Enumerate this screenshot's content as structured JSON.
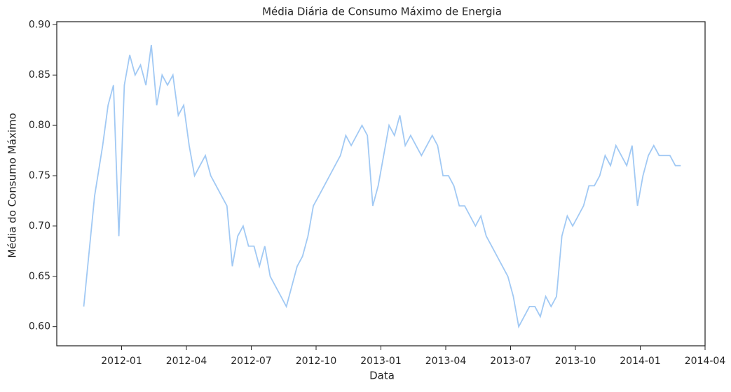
{
  "chart_data": {
    "type": "line",
    "title": "Média Diária de Consumo Máximo de Energia",
    "xlabel": "Data",
    "ylabel": "Média do Consumo Máximo",
    "x": [
      "2011-11",
      "2011-11",
      "2011-12",
      "2011-12",
      "2011-12",
      "2011-12",
      "2012-01",
      "2012-01",
      "2012-01",
      "2012-01",
      "2012-02",
      "2012-02",
      "2012-02",
      "2012-02",
      "2012-03",
      "2012-03",
      "2012-03",
      "2012-03",
      "2012-04",
      "2012-04",
      "2012-04",
      "2012-04",
      "2012-05",
      "2012-05",
      "2012-05",
      "2012-05",
      "2012-06",
      "2012-06",
      "2012-06",
      "2012-06",
      "2012-07",
      "2012-07",
      "2012-07",
      "2012-07",
      "2012-08",
      "2012-08",
      "2012-08",
      "2012-08",
      "2012-09",
      "2012-09",
      "2012-09",
      "2012-09",
      "2012-10",
      "2012-10",
      "2012-10",
      "2012-10",
      "2012-11",
      "2012-11",
      "2012-11",
      "2012-11",
      "2012-12",
      "2012-12",
      "2012-12",
      "2012-12",
      "2013-01",
      "2013-01",
      "2013-01",
      "2013-01",
      "2013-02",
      "2013-02",
      "2013-02",
      "2013-02",
      "2013-03",
      "2013-03",
      "2013-03",
      "2013-03",
      "2013-04",
      "2013-04",
      "2013-04",
      "2013-04",
      "2013-05",
      "2013-05",
      "2013-05",
      "2013-05",
      "2013-06",
      "2013-06",
      "2013-06",
      "2013-06",
      "2013-07",
      "2013-07",
      "2013-07",
      "2013-07",
      "2013-08",
      "2013-08",
      "2013-08",
      "2013-08",
      "2013-09",
      "2013-09",
      "2013-09",
      "2013-09",
      "2013-10",
      "2013-10",
      "2013-10",
      "2013-10",
      "2013-11",
      "2013-11",
      "2013-11",
      "2013-11",
      "2013-12",
      "2013-12",
      "2013-12",
      "2013-12",
      "2014-01",
      "2014-01",
      "2014-01",
      "2014-01",
      "2014-02",
      "2014-02",
      "2014-02",
      "2014-02"
    ],
    "series": [
      {
        "name": "Média do Consumo Máximo",
        "color": "#a1c9f4",
        "values": [
          0.62,
          0.73,
          0.78,
          0.82,
          0.84,
          0.69,
          0.84,
          0.87,
          0.85,
          0.86,
          0.84,
          0.88,
          0.82,
          0.85,
          0.84,
          0.85,
          0.81,
          0.82,
          0.78,
          0.75,
          0.76,
          0.77,
          0.75,
          0.74,
          0.73,
          0.72,
          0.66,
          0.69,
          0.7,
          0.68,
          0.68,
          0.66,
          0.68,
          0.65,
          0.64,
          0.63,
          0.62,
          0.64,
          0.66,
          0.67,
          0.69,
          0.72,
          0.73,
          0.74,
          0.75,
          0.76,
          0.77,
          0.79,
          0.78,
          0.79,
          0.8,
          0.79,
          0.72,
          0.74,
          0.77,
          0.8,
          0.79,
          0.81,
          0.78,
          0.79,
          0.78,
          0.77,
          0.78,
          0.79,
          0.78,
          0.75,
          0.75,
          0.74,
          0.72,
          0.72,
          0.71,
          0.7,
          0.71,
          0.69,
          0.68,
          0.67,
          0.66,
          0.65,
          0.63,
          0.6,
          0.61,
          0.62,
          0.62,
          0.61,
          0.63,
          0.62,
          0.63,
          0.69,
          0.71,
          0.7,
          0.71,
          0.72,
          0.74,
          0.74,
          0.75,
          0.77,
          0.76,
          0.78,
          0.77,
          0.76,
          0.78,
          0.72,
          0.75,
          0.77,
          0.78,
          0.77,
          0.77,
          0.77,
          0.76,
          0.76
        ]
      }
    ],
    "xlim": [
      "2011-10",
      "2014-04"
    ],
    "xticks": [
      "2012-01",
      "2012-04",
      "2012-07",
      "2012-10",
      "2013-01",
      "2013-04",
      "2013-07",
      "2013-10",
      "2014-01",
      "2014-04"
    ],
    "ylim": [
      0.581,
      0.903
    ],
    "yticks": [
      {
        "value": 0.6,
        "label": "0.60"
      },
      {
        "value": 0.65,
        "label": "0.65"
      },
      {
        "value": 0.7,
        "label": "0.70"
      },
      {
        "value": 0.75,
        "label": "0.75"
      },
      {
        "value": 0.8,
        "label": "0.80"
      },
      {
        "value": 0.85,
        "label": "0.85"
      },
      {
        "value": 0.9,
        "label": "0.90"
      }
    ]
  }
}
